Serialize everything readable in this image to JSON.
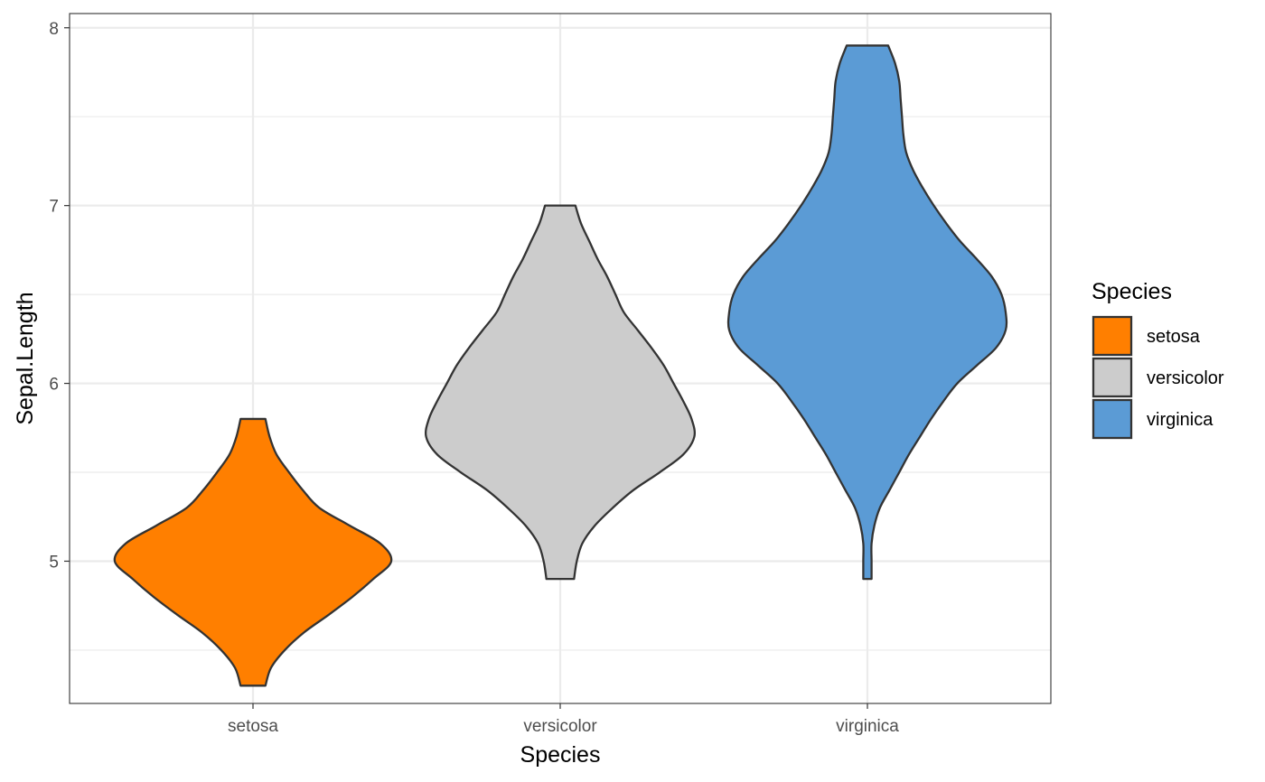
{
  "chart_data": {
    "type": "violin",
    "xlabel": "Species",
    "ylabel": "Sepal.Length",
    "categories": [
      "setosa",
      "versicolor",
      "virginica"
    ],
    "yticks": [
      "5",
      "6",
      "7",
      "8"
    ],
    "ylim": [
      4.2,
      8.08
    ],
    "grid": true,
    "legend": {
      "title": "Species",
      "placement": "right",
      "items": [
        "setosa",
        "versicolor",
        "virginica"
      ]
    },
    "colors": {
      "setosa": "#ff7f00",
      "versicolor": "#cccccc",
      "virginica": "#5b9bd5",
      "outline": "#333333",
      "grid": "#ebebeb",
      "panel_border": "#333333"
    },
    "series": [
      {
        "name": "setosa",
        "range": [
          4.3,
          5.8
        ],
        "density_profile": [
          [
            4.3,
            0.09
          ],
          [
            4.4,
            0.13
          ],
          [
            4.5,
            0.23
          ],
          [
            4.6,
            0.37
          ],
          [
            4.7,
            0.55
          ],
          [
            4.8,
            0.72
          ],
          [
            4.9,
            0.87
          ],
          [
            5.0,
            1.0
          ],
          [
            5.1,
            0.92
          ],
          [
            5.2,
            0.7
          ],
          [
            5.3,
            0.48
          ],
          [
            5.4,
            0.36
          ],
          [
            5.5,
            0.26
          ],
          [
            5.6,
            0.17
          ],
          [
            5.7,
            0.12
          ],
          [
            5.8,
            0.09
          ]
        ]
      },
      {
        "name": "versicolor",
        "range": [
          4.9,
          7.0
        ],
        "density_profile": [
          [
            4.9,
            0.1
          ],
          [
            5.0,
            0.12
          ],
          [
            5.1,
            0.16
          ],
          [
            5.2,
            0.25
          ],
          [
            5.3,
            0.38
          ],
          [
            5.4,
            0.53
          ],
          [
            5.5,
            0.72
          ],
          [
            5.6,
            0.89
          ],
          [
            5.7,
            0.97
          ],
          [
            5.8,
            0.95
          ],
          [
            5.9,
            0.89
          ],
          [
            6.0,
            0.82
          ],
          [
            6.1,
            0.75
          ],
          [
            6.2,
            0.66
          ],
          [
            6.3,
            0.56
          ],
          [
            6.4,
            0.46
          ],
          [
            6.5,
            0.4
          ],
          [
            6.6,
            0.34
          ],
          [
            6.7,
            0.27
          ],
          [
            6.8,
            0.21
          ],
          [
            6.9,
            0.15
          ],
          [
            7.0,
            0.11
          ]
        ]
      },
      {
        "name": "virginica",
        "range": [
          4.9,
          7.9
        ],
        "density_profile": [
          [
            4.9,
            0.03
          ],
          [
            5.0,
            0.03
          ],
          [
            5.1,
            0.03
          ],
          [
            5.2,
            0.05
          ],
          [
            5.3,
            0.09
          ],
          [
            5.4,
            0.16
          ],
          [
            5.5,
            0.23
          ],
          [
            5.6,
            0.3
          ],
          [
            5.7,
            0.38
          ],
          [
            5.8,
            0.46
          ],
          [
            5.9,
            0.55
          ],
          [
            6.0,
            0.65
          ],
          [
            6.1,
            0.79
          ],
          [
            6.2,
            0.93
          ],
          [
            6.3,
            1.0
          ],
          [
            6.4,
            1.0
          ],
          [
            6.5,
            0.97
          ],
          [
            6.6,
            0.9
          ],
          [
            6.7,
            0.79
          ],
          [
            6.8,
            0.67
          ],
          [
            6.9,
            0.57
          ],
          [
            7.0,
            0.48
          ],
          [
            7.1,
            0.4
          ],
          [
            7.2,
            0.33
          ],
          [
            7.3,
            0.28
          ],
          [
            7.4,
            0.26
          ],
          [
            7.5,
            0.25
          ],
          [
            7.6,
            0.24
          ],
          [
            7.7,
            0.23
          ],
          [
            7.8,
            0.2
          ],
          [
            7.9,
            0.15
          ]
        ]
      }
    ]
  }
}
